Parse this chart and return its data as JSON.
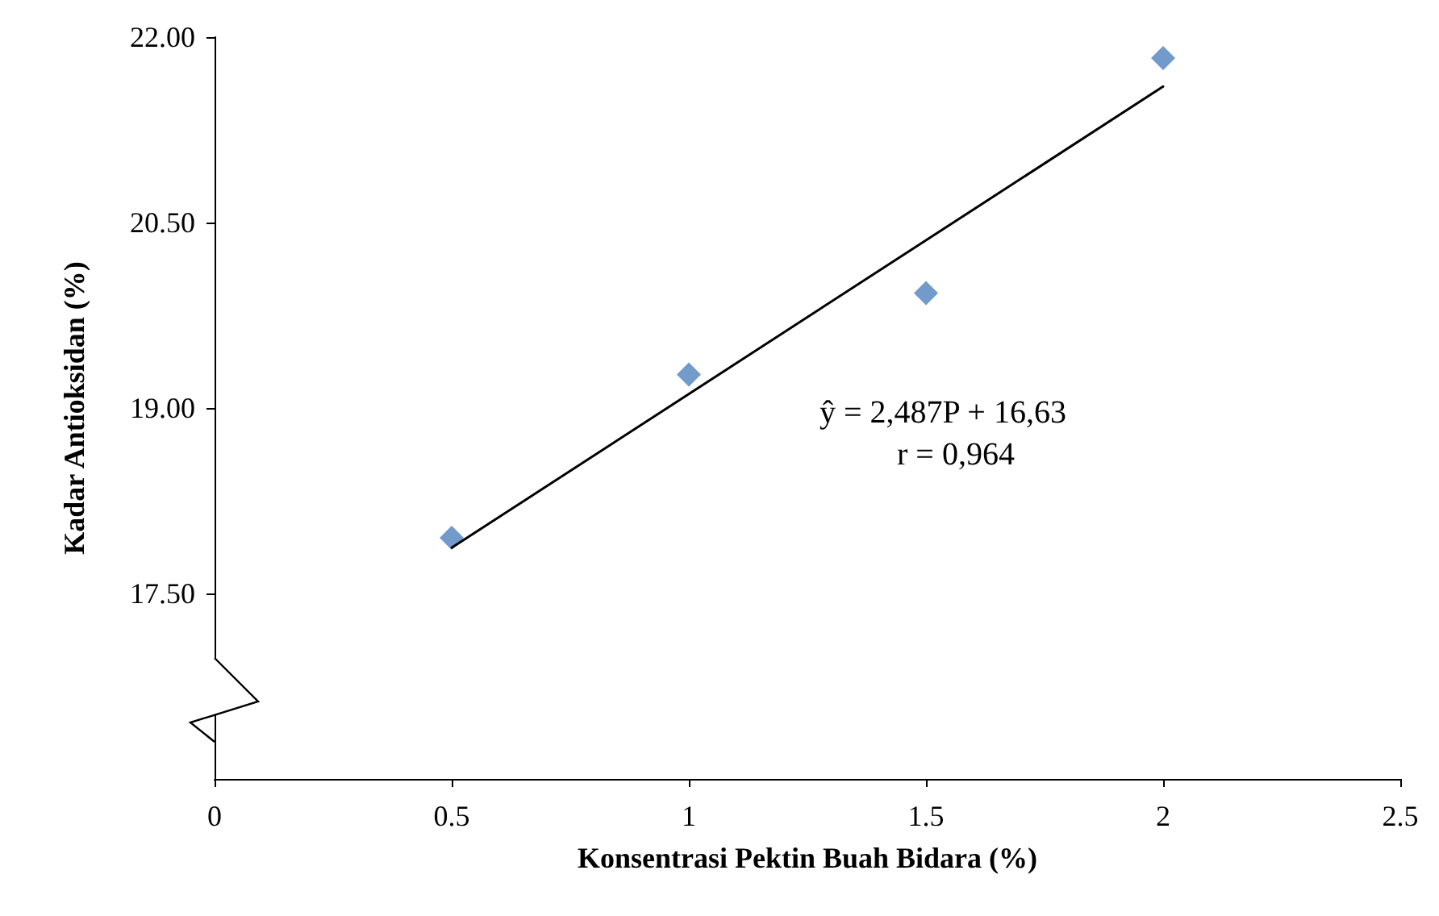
{
  "chart_data": {
    "type": "scatter",
    "xlabel": "Konsentrasi Pektin Buah Bidara (%)",
    "ylabel": "Kadar Antioksidan (%)",
    "x": [
      0.5,
      1,
      1.5,
      2
    ],
    "series": [
      {
        "type": "scatter",
        "color": "#4f81bd",
        "marker": "diamond",
        "values": [
          17.95,
          19.27,
          19.93,
          21.83
        ]
      },
      {
        "type": "line",
        "color": "#000000",
        "marker": "none",
        "line_style": "solid",
        "x": [
          0.5,
          2
        ],
        "values": [
          17.87,
          21.6
        ]
      }
    ],
    "xlim": [
      0,
      2.5
    ],
    "xticks": [
      0,
      0.5,
      1,
      1.5,
      2,
      2.5
    ],
    "ylim": [
      16,
      22
    ],
    "yticks": [
      {
        "value": 17.5,
        "label": "17.50"
      },
      {
        "value": 19,
        "label": "19.00"
      },
      {
        "value": 20.5,
        "label": "20.50"
      },
      {
        "value": 22,
        "label": "22.00"
      }
    ],
    "annotations": [
      "ŷ = 2,487P + 16,63",
      "r = 0,964"
    ],
    "grid": false
  }
}
